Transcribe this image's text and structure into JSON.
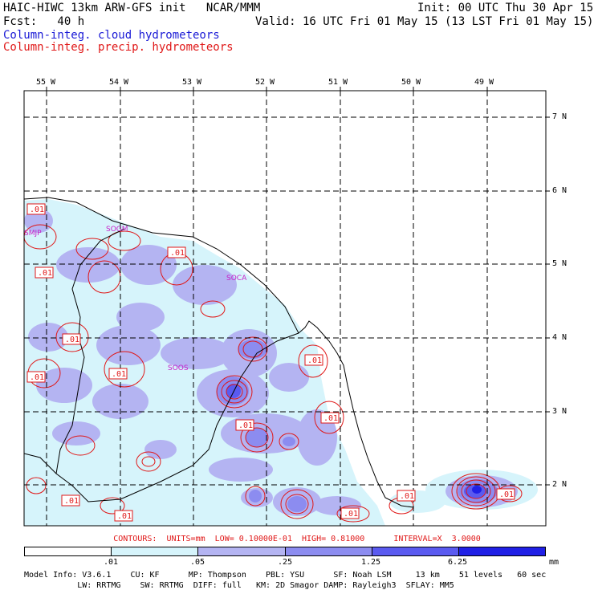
{
  "header": {
    "title_left": "HAIC-HIWC 13km ARW-GFS init   NCAR/MMM",
    "init": "Init: 00 UTC Thu 30 Apr 15",
    "fcst": "Fcst:   40 h",
    "valid": "Valid: 16 UTC Fri 01 May 15 (13 LST Fri 01 May 15)",
    "legend_cloud": "Column-integ. cloud hydrometeors",
    "legend_precip": "Column-integ. precip. hydrometeors"
  },
  "map": {
    "lon_labels": [
      "55 W",
      "54 W",
      "53 W",
      "52 W",
      "51 W",
      "50 W",
      "49 W"
    ],
    "lat_labels": [
      "7 N",
      "6 N",
      "5 N",
      "4 N",
      "3 N",
      "2 N"
    ],
    "stations": [
      "SMJP",
      "SOGM",
      "SOCA",
      "SOOS"
    ],
    "contour_label": ".01",
    "colors": {
      "cloud_001": "#d6f4fb",
      "cloud_005": "#b4b4f2",
      "cloud_025": "#8c8cf0",
      "cloud_125": "#5a5af0",
      "cloud_625": "#2020e6",
      "precip_contour": "#e01818",
      "station": "#c81ec8"
    }
  },
  "contours_info": "CONTOURS:  UNITS=mm  LOW= 0.10000E-01  HIGH= 0.81000      INTERVAL=X  3.0000",
  "colorbar": {
    "labels": [
      ".01",
      ".05",
      ".25",
      "1.25",
      "6.25"
    ],
    "units": "mm",
    "colors": [
      "#ffffff",
      "#d6f4fb",
      "#b4b4f2",
      "#8c8cf0",
      "#5a5af0",
      "#2020e6"
    ]
  },
  "model_info": {
    "line1": "Model Info: V3.6.1    CU: KF      MP: Thompson    PBL: YSU      SF: Noah LSM     13 km    51 levels   60 sec",
    "line2": "           LW: RRTMG    SW: RRTMG  DIFF: full   KM: 2D Smagor DAMP: Rayleigh3  SFLAY: MM5"
  }
}
